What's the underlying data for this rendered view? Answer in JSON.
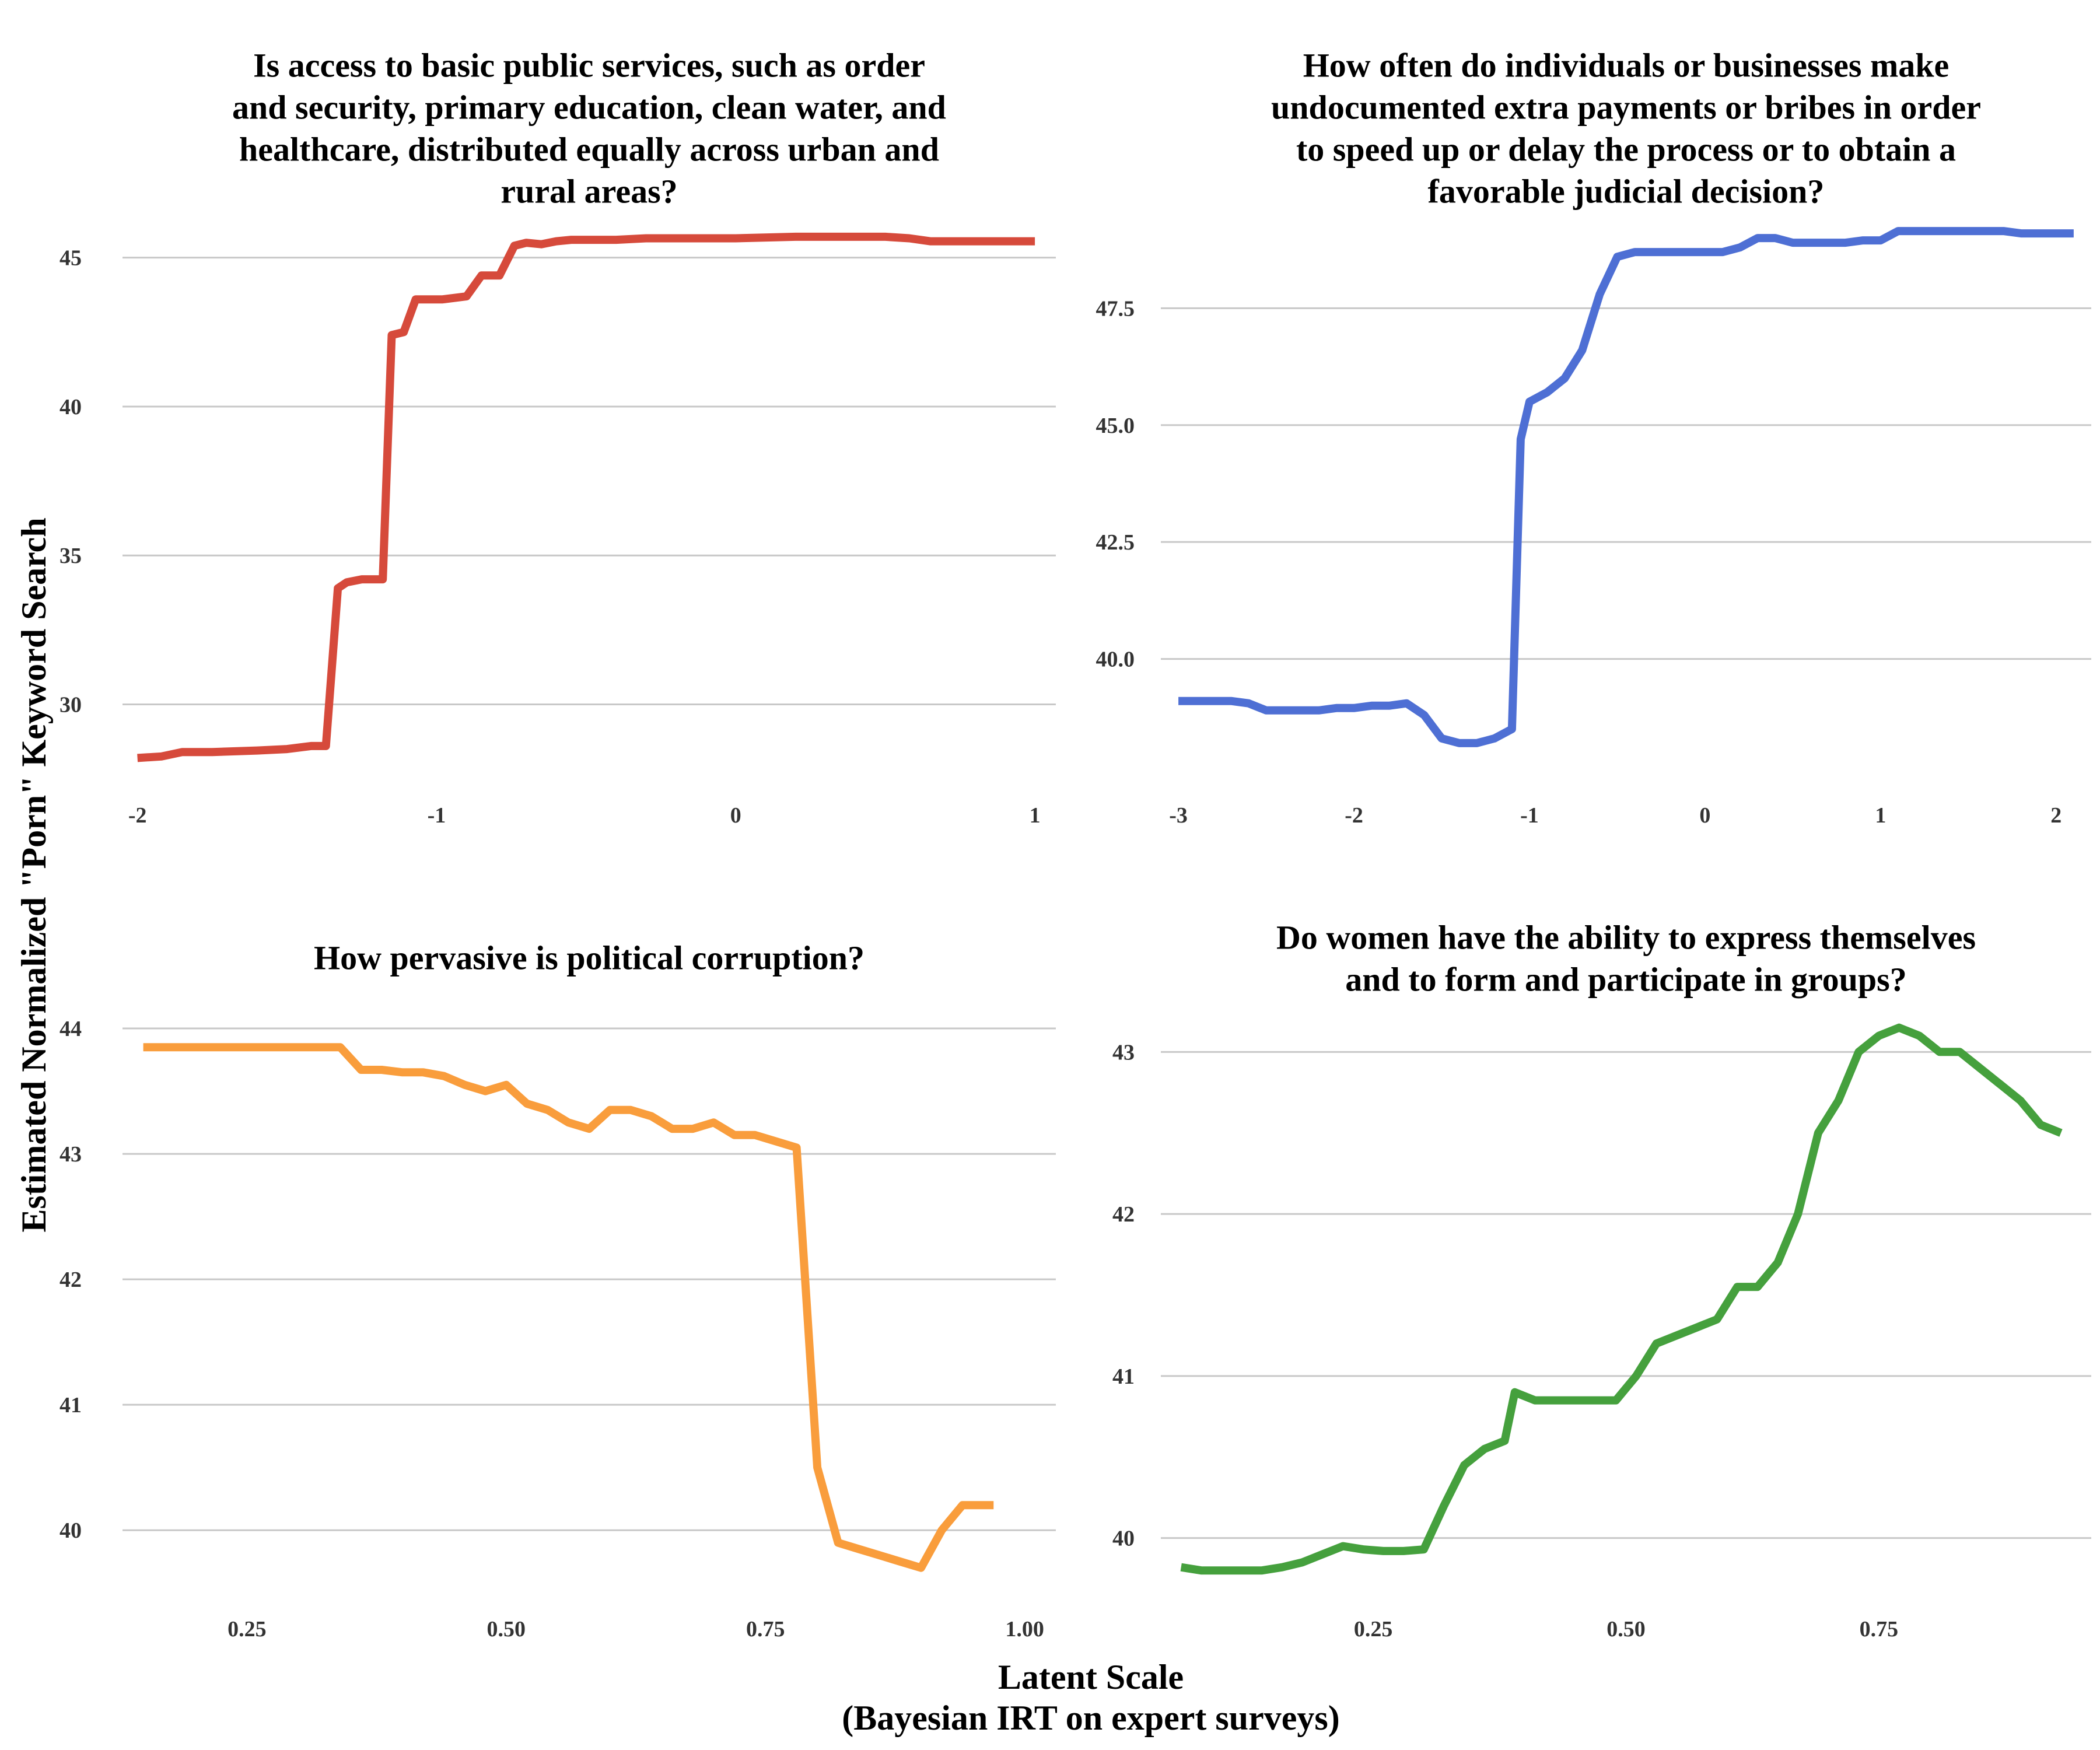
{
  "axes": {
    "ylabel": "Estimated Normalized \"Porn\" Keyword Search",
    "xlabel_line1": "Latent Scale",
    "xlabel_line2": "(Bayesian IRT on expert surveys)"
  },
  "chart_data": [
    {
      "type": "line",
      "title": [
        "Is access to basic public services, such as order",
        "and security, primary education, clean water, and",
        "healthcare, distributed equally across urban and",
        "rural areas?"
      ],
      "color": "#d64a3b",
      "xlim": [
        -2.05,
        1.07
      ],
      "ylim": [
        27.6,
        46.6
      ],
      "xticks": [
        -2,
        -1,
        0,
        1
      ],
      "xtick_labels": [
        "-2",
        "-1",
        "0",
        "1"
      ],
      "yticks": [
        30,
        35,
        40,
        45
      ],
      "ytick_labels": [
        "30",
        "35",
        "40",
        "45"
      ],
      "x": [
        -2.0,
        -1.92,
        -1.85,
        -1.75,
        -1.6,
        -1.5,
        -1.42,
        -1.37,
        -1.33,
        -1.3,
        -1.25,
        -1.18,
        -1.15,
        -1.11,
        -1.07,
        -1.03,
        -0.98,
        -0.9,
        -0.85,
        -0.79,
        -0.74,
        -0.7,
        -0.65,
        -0.6,
        -0.55,
        -0.5,
        -0.4,
        -0.3,
        -0.2,
        -0.1,
        0.0,
        0.2,
        0.4,
        0.5,
        0.58,
        0.65,
        0.75,
        0.85,
        1.0
      ],
      "y": [
        28.2,
        28.25,
        28.4,
        28.4,
        28.45,
        28.5,
        28.6,
        28.6,
        33.9,
        34.1,
        34.2,
        34.2,
        42.4,
        42.5,
        43.6,
        43.6,
        43.6,
        43.7,
        44.4,
        44.4,
        45.4,
        45.5,
        45.45,
        45.55,
        45.6,
        45.6,
        45.6,
        45.65,
        45.65,
        45.65,
        45.65,
        45.7,
        45.7,
        45.7,
        45.65,
        45.55,
        45.55,
        45.55,
        45.55
      ]
    },
    {
      "type": "line",
      "title": [
        "How often do individuals or businesses make",
        "undocumented extra payments or bribes in order",
        "to speed up or delay the process or to obtain a",
        "favorable judicial decision?"
      ],
      "color": "#4e6fd4",
      "xlim": [
        -3.1,
        2.2
      ],
      "ylim": [
        37.5,
        49.6
      ],
      "xticks": [
        -3,
        -2,
        -1,
        0,
        1,
        2
      ],
      "xtick_labels": [
        "-3",
        "-2",
        "-1",
        "0",
        "1",
        "2"
      ],
      "yticks": [
        40.0,
        42.5,
        45.0,
        47.5
      ],
      "ytick_labels": [
        "40.0",
        "42.5",
        "45.0",
        "47.5"
      ],
      "x": [
        -3.0,
        -2.9,
        -2.8,
        -2.7,
        -2.6,
        -2.5,
        -2.4,
        -2.3,
        -2.2,
        -2.1,
        -2.0,
        -1.9,
        -1.8,
        -1.7,
        -1.6,
        -1.5,
        -1.4,
        -1.3,
        -1.2,
        -1.1,
        -1.05,
        -1.0,
        -0.9,
        -0.8,
        -0.7,
        -0.6,
        -0.5,
        -0.4,
        -0.3,
        -0.2,
        -0.1,
        0.0,
        0.1,
        0.2,
        0.3,
        0.4,
        0.5,
        0.6,
        0.7,
        0.8,
        0.9,
        1.0,
        1.1,
        1.2,
        1.3,
        1.4,
        1.5,
        1.6,
        1.7,
        1.8,
        1.9,
        2.0,
        2.1
      ],
      "y": [
        39.1,
        39.1,
        39.1,
        39.1,
        39.05,
        38.9,
        38.9,
        38.9,
        38.9,
        38.95,
        38.95,
        39.0,
        39.0,
        39.05,
        38.8,
        38.3,
        38.2,
        38.2,
        38.3,
        38.5,
        44.7,
        45.5,
        45.7,
        46.0,
        46.6,
        47.8,
        48.6,
        48.7,
        48.7,
        48.7,
        48.7,
        48.7,
        48.7,
        48.8,
        49.0,
        49.0,
        48.9,
        48.9,
        48.9,
        48.9,
        48.95,
        48.95,
        49.15,
        49.15,
        49.15,
        49.15,
        49.15,
        49.15,
        49.15,
        49.1,
        49.1,
        49.1,
        49.1
      ]
    },
    {
      "type": "line",
      "title": [
        "How pervasive is political corruption?"
      ],
      "color": "#f99d3c",
      "xlim": [
        0.13,
        1.03
      ],
      "ylim": [
        39.55,
        44.2
      ],
      "xticks": [
        0.25,
        0.5,
        0.75,
        1.0
      ],
      "xtick_labels": [
        "0.25",
        "0.50",
        "0.75",
        "1.00"
      ],
      "yticks": [
        40,
        41,
        42,
        43,
        44
      ],
      "ytick_labels": [
        "40",
        "41",
        "42",
        "43",
        "44"
      ],
      "x": [
        0.15,
        0.2,
        0.25,
        0.3,
        0.34,
        0.36,
        0.38,
        0.4,
        0.42,
        0.44,
        0.46,
        0.48,
        0.5,
        0.52,
        0.54,
        0.56,
        0.58,
        0.6,
        0.62,
        0.64,
        0.66,
        0.68,
        0.7,
        0.72,
        0.74,
        0.76,
        0.78,
        0.8,
        0.82,
        0.84,
        0.86,
        0.88,
        0.9,
        0.92,
        0.94,
        0.97
      ],
      "y": [
        43.85,
        43.85,
        43.85,
        43.85,
        43.85,
        43.67,
        43.67,
        43.65,
        43.65,
        43.62,
        43.55,
        43.5,
        43.55,
        43.4,
        43.35,
        43.25,
        43.2,
        43.35,
        43.35,
        43.3,
        43.2,
        43.2,
        43.25,
        43.15,
        43.15,
        43.1,
        43.05,
        40.5,
        39.9,
        39.85,
        39.8,
        39.75,
        39.7,
        40.0,
        40.2,
        40.2
      ]
    },
    {
      "type": "line",
      "title": [
        "Do women have the ability to express themselves",
        "and to form and participate in groups?"
      ],
      "color": "#45a03d",
      "xlim": [
        0.04,
        0.96
      ],
      "ylim": [
        39.7,
        43.3
      ],
      "xticks": [
        0.25,
        0.5,
        0.75
      ],
      "xtick_labels": [
        "0.25",
        "0.50",
        "0.75"
      ],
      "yticks": [
        40,
        41,
        42,
        43
      ],
      "ytick_labels": [
        "40",
        "41",
        "42",
        "43"
      ],
      "x": [
        0.06,
        0.08,
        0.1,
        0.12,
        0.14,
        0.16,
        0.18,
        0.2,
        0.22,
        0.24,
        0.26,
        0.28,
        0.3,
        0.32,
        0.34,
        0.36,
        0.38,
        0.39,
        0.41,
        0.43,
        0.45,
        0.47,
        0.49,
        0.51,
        0.53,
        0.55,
        0.57,
        0.59,
        0.61,
        0.63,
        0.65,
        0.67,
        0.69,
        0.71,
        0.73,
        0.75,
        0.77,
        0.79,
        0.81,
        0.83,
        0.85,
        0.87,
        0.89,
        0.91,
        0.93
      ],
      "y": [
        39.82,
        39.8,
        39.8,
        39.8,
        39.8,
        39.82,
        39.85,
        39.9,
        39.95,
        39.93,
        39.92,
        39.92,
        39.93,
        40.2,
        40.45,
        40.55,
        40.6,
        40.9,
        40.85,
        40.85,
        40.85,
        40.85,
        40.85,
        41.0,
        41.2,
        41.25,
        41.3,
        41.35,
        41.55,
        41.55,
        41.7,
        42.0,
        42.5,
        42.7,
        43.0,
        43.1,
        43.15,
        43.1,
        43.0,
        43.0,
        42.9,
        42.8,
        42.7,
        42.55,
        42.5
      ]
    }
  ]
}
